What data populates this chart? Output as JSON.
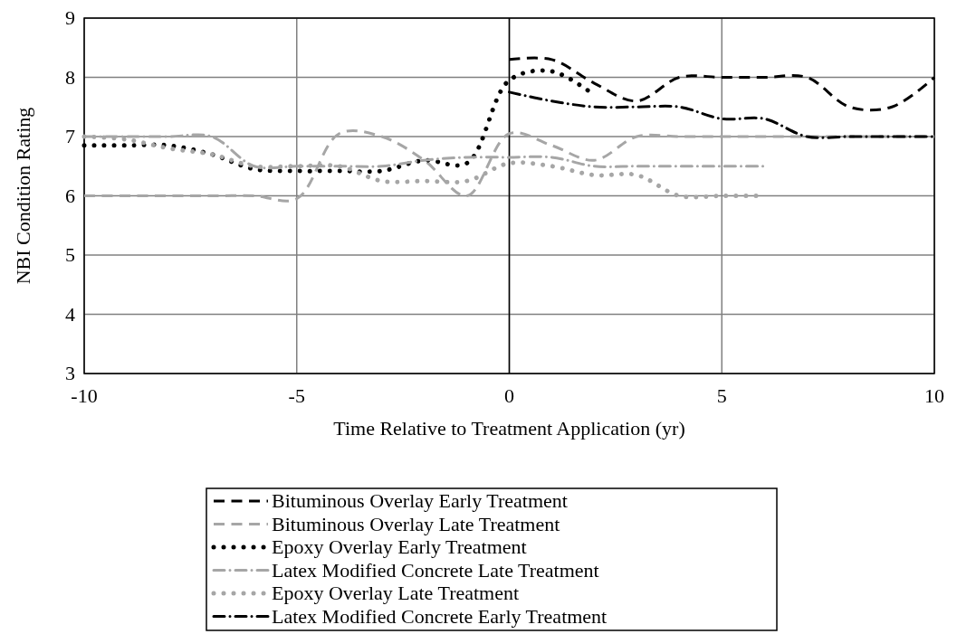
{
  "chart_data": {
    "type": "line",
    "xlabel": "Time Relative to Treatment Application (yr)",
    "ylabel": "NBI Condition Rating",
    "xlim": [
      -10,
      10
    ],
    "ylim": [
      3,
      9
    ],
    "xticks": [
      -10,
      -5,
      0,
      5,
      10
    ],
    "yticks": [
      3,
      4,
      5,
      6,
      7,
      8,
      9
    ],
    "grid": true,
    "legend": "bottom",
    "series": [
      {
        "name": "Bituminous Overlay Early Treatment",
        "color": "#000000",
        "line_style": "dashed",
        "x": [
          0,
          1,
          2,
          3,
          4,
          5,
          6,
          7,
          8,
          9,
          10
        ],
        "values": [
          8.3,
          8.3,
          7.9,
          7.6,
          8,
          8,
          8,
          8,
          7.5,
          7.5,
          8
        ]
      },
      {
        "name": "Bituminous Overlay Late Treatment",
        "color": "#a6a6a6",
        "line_style": "dashed",
        "x": [
          -10,
          -9,
          -8,
          -7,
          -6,
          -5,
          -4,
          -3,
          -2,
          -1,
          0,
          1,
          2,
          3,
          4,
          5,
          6,
          7,
          8,
          9,
          10
        ],
        "values": [
          6,
          6,
          6,
          6,
          6,
          5.95,
          7.05,
          7,
          6.6,
          6,
          7.05,
          6.85,
          6.6,
          7,
          7,
          7,
          7,
          7,
          7,
          7,
          7
        ]
      },
      {
        "name": "Epoxy Overlay Early Treatment",
        "color": "#000000",
        "line_style": "dotted",
        "x": [
          -10,
          -9,
          -8,
          -7,
          -6,
          -5,
          -4,
          -3,
          -2,
          -1,
          0,
          1,
          2
        ],
        "values": [
          6.85,
          6.85,
          6.85,
          6.7,
          6.45,
          6.42,
          6.42,
          6.42,
          6.6,
          6.55,
          7.95,
          8.1,
          7.7
        ]
      },
      {
        "name": "Latex Modified Concrete Late Treatment",
        "color": "#a6a6a6",
        "line_style": "dashdot",
        "x": [
          -10,
          -9,
          -8,
          -7,
          -6,
          -5,
          -4,
          -3,
          -2,
          -1,
          0,
          1,
          2,
          3,
          4,
          5,
          6
        ],
        "values": [
          7,
          7,
          7,
          7,
          6.5,
          6.5,
          6.5,
          6.5,
          6.6,
          6.65,
          6.65,
          6.65,
          6.5,
          6.5,
          6.5,
          6.5,
          6.5
        ]
      },
      {
        "name": "Epoxy Overlay Late Treatment",
        "color": "#a6a6a6",
        "line_style": "dotted",
        "x": [
          -10,
          -9,
          -8,
          -7,
          -6,
          -5,
          -4,
          -3,
          -2,
          -1,
          0,
          1,
          2,
          3,
          4,
          5,
          6
        ],
        "values": [
          7,
          6.95,
          6.8,
          6.7,
          6.5,
          6.5,
          6.5,
          6.25,
          6.25,
          6.25,
          6.55,
          6.5,
          6.35,
          6.35,
          6,
          6,
          6
        ]
      },
      {
        "name": "Latex Modified Concrete Early Treatment",
        "color": "#000000",
        "line_style": "dashdot",
        "x": [
          0,
          1,
          2,
          3,
          4,
          5,
          6,
          7,
          8,
          9,
          10
        ],
        "values": [
          7.75,
          7.6,
          7.5,
          7.5,
          7.5,
          7.3,
          7.3,
          7,
          7,
          7,
          7
        ]
      }
    ]
  }
}
